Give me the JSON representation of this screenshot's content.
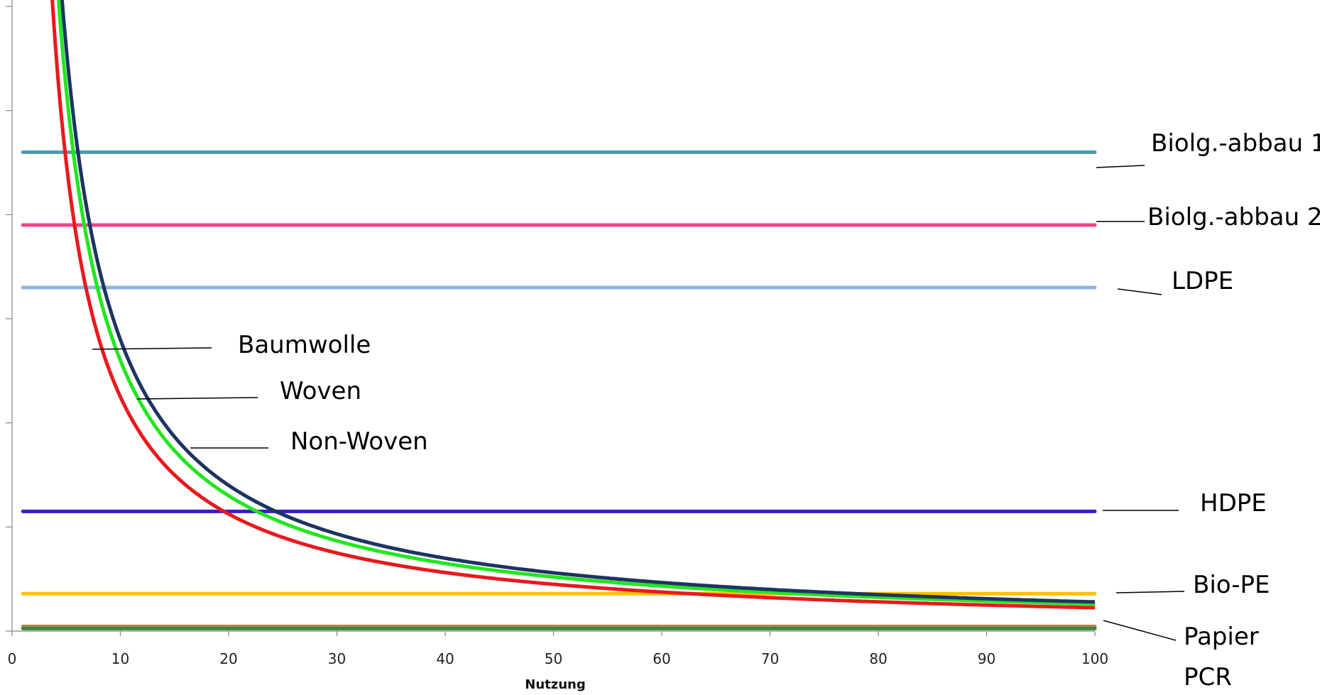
{
  "chart_data": {
    "type": "line",
    "title": "",
    "xlabel": "Nutzung",
    "ylabel": "",
    "xlim": [
      0,
      100
    ],
    "ylim": [
      0,
      6
    ],
    "x_ticks": [
      0,
      10,
      20,
      30,
      40,
      50,
      60,
      70,
      80,
      90,
      100
    ],
    "y_ticks": [
      0,
      1,
      2,
      3,
      4,
      5,
      6
    ],
    "y_tick_labels_shown": false,
    "grid": false,
    "legend": "none",
    "horizontal_series": [
      {
        "name": "Biolg.-abbau 1",
        "value": 4.6,
        "x_range": [
          1,
          100
        ],
        "color": "#4A9BB3"
      },
      {
        "name": "Biolg.-abbau 2",
        "value": 3.9,
        "x_range": [
          1,
          100
        ],
        "color": "#F0408A"
      },
      {
        "name": "LDPE",
        "value": 3.3,
        "x_range": [
          1,
          100
        ],
        "color": "#8EB4E3"
      },
      {
        "name": "HDPE",
        "value": 1.15,
        "x_range": [
          1,
          100
        ],
        "color": "#3C19D0"
      },
      {
        "name": "Bio-PE",
        "value": 0.36,
        "x_range": [
          1,
          100
        ],
        "color": "#FFC000"
      },
      {
        "name": "Papier",
        "value": 0.045,
        "x_range": [
          1,
          100
        ],
        "color": "#B08A4A"
      },
      {
        "name": "PCR",
        "value": 0.025,
        "x_range": [
          1,
          100
        ],
        "color": "#3A8A3A"
      }
    ],
    "decay_series": [
      {
        "name": "Baumwolle",
        "color": "#E8191E",
        "x": [
          3,
          5,
          10,
          15,
          20,
          25,
          30,
          40,
          50,
          60,
          70,
          80,
          90,
          100
        ],
        "values": [
          8.0,
          4.5,
          2.25,
          1.5,
          1.125,
          0.9,
          0.75,
          0.5625,
          0.45,
          0.375,
          0.321,
          0.281,
          0.25,
          0.225
        ]
      },
      {
        "name": "Woven",
        "color": "#22E61E",
        "x": [
          3,
          5,
          10,
          15,
          20,
          25,
          30,
          40,
          50,
          60,
          70,
          80,
          90,
          100
        ],
        "values": [
          8.8,
          5.2,
          2.6,
          1.733,
          1.3,
          1.04,
          0.867,
          0.65,
          0.52,
          0.433,
          0.371,
          0.325,
          0.289,
          0.26
        ]
      },
      {
        "name": "Non-Woven",
        "color": "#1D3461",
        "x": [
          3,
          5,
          10,
          15,
          20,
          25,
          30,
          40,
          50,
          60,
          70,
          80,
          90,
          100
        ],
        "values": [
          9.5,
          5.6,
          2.8,
          1.867,
          1.4,
          1.12,
          0.933,
          0.7,
          0.56,
          0.467,
          0.4,
          0.35,
          0.311,
          0.28
        ]
      }
    ]
  }
}
